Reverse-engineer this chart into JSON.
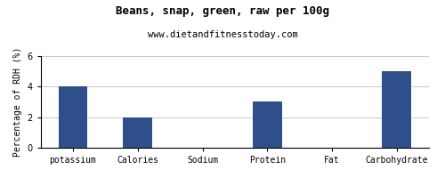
{
  "title": "Beans, snap, green, raw per 100g",
  "subtitle": "www.dietandfitnesstoday.com",
  "ylabel": "Percentage of RDH (%)",
  "categories": [
    "potassium",
    "Calories",
    "Sodium",
    "Protein",
    "Fat",
    "Carbohydrate"
  ],
  "values": [
    4.0,
    2.0,
    0.0,
    3.0,
    0.0,
    5.0
  ],
  "bar_color": "#2e4f8a",
  "ylim": [
    0,
    6
  ],
  "yticks": [
    0,
    2,
    4,
    6
  ],
  "background_color": "#ffffff",
  "plot_bg_color": "#ffffff",
  "title_fontsize": 9,
  "subtitle_fontsize": 7.5,
  "ylabel_fontsize": 7,
  "tick_fontsize": 7,
  "grid_color": "#cccccc",
  "bar_width": 0.45
}
